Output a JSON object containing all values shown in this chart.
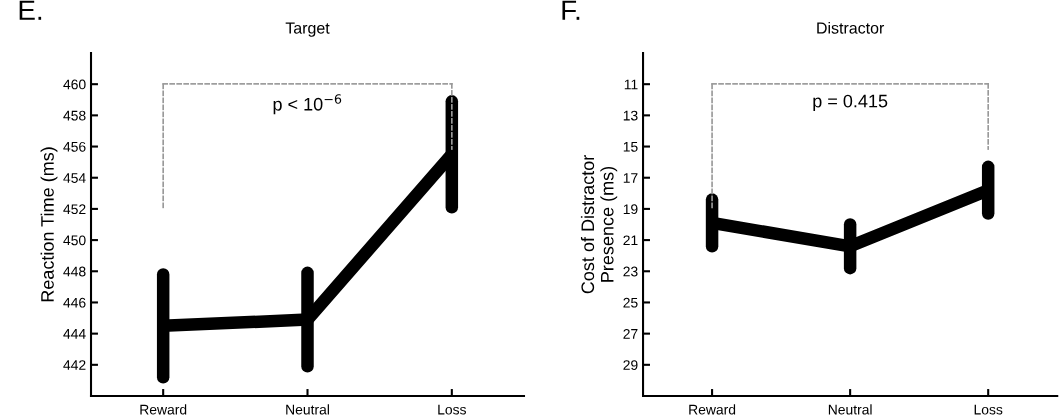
{
  "chart_data": [
    {
      "type": "line",
      "title": "Target",
      "ylabel": "Reaction Time (ms)",
      "categories": [
        "Reward",
        "Neutral",
        "Loss"
      ],
      "series": [
        {
          "color": "#000000",
          "values": [
            444.5,
            444.9,
            455.5
          ],
          "errors": [
            3.3,
            3.0,
            3.4
          ]
        }
      ],
      "ylim": [
        440,
        462
      ],
      "yticks": [
        442,
        444,
        446,
        448,
        450,
        452,
        454,
        456,
        458,
        460
      ],
      "grid": false,
      "annotations": [
        "E.",
        "p < 10$^{−6}$"
      ]
    },
    {
      "type": "line",
      "title": "Distractor",
      "ylabel": "Cost of Distractor\nPresence (ms)",
      "categories": [
        "Reward",
        "Neutral",
        "Loss"
      ],
      "series": [
        {
          "color": "#000000",
          "values": [
            19.9,
            21.4,
            17.8
          ],
          "errors": [
            1.5,
            1.4,
            1.5
          ]
        }
      ],
      "ylim": [
        31,
        9
      ],
      "yticks": [
        11,
        13,
        15,
        17,
        19,
        21,
        23,
        25,
        27,
        29
      ],
      "grid": false,
      "annotations": [
        "F.",
        "p = 0.415"
      ]
    }
  ]
}
